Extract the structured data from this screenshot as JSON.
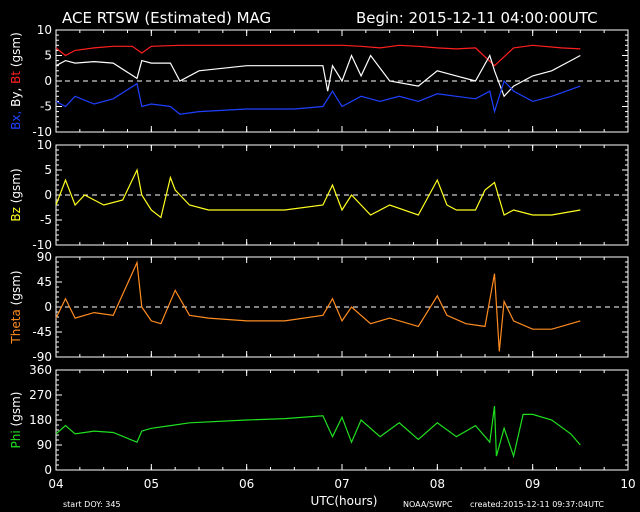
{
  "header": {
    "title": "ACE RTSW (Estimated) MAG",
    "begin": "Begin: 2015-12-11 04:00:00UTC"
  },
  "footer": {
    "start_doy": "start DOY:  345",
    "x_title": "UTC(hours)",
    "source": "NOAA/SWPC",
    "created": "created:2015-12-11 09:37:04UTC"
  },
  "colors": {
    "background": "#000000",
    "axes": "#ffffff",
    "bt": "#ff2020",
    "bx": "#2040ff",
    "by": "#ffffff",
    "bz": "#ffff20",
    "theta": "#ff8c20",
    "phi": "#20e020"
  },
  "chart_data": [
    {
      "type": "line",
      "ylabel_parts": [
        {
          "text": "Bx,",
          "color": "#2040ff"
        },
        {
          "text": " By,",
          "color": "#ffffff"
        },
        {
          "text": " Bt",
          "color": "#ff2020"
        },
        {
          "text": " (gsm)",
          "color": "#ffffff"
        }
      ],
      "ylim": [
        -10,
        10
      ],
      "yticks": [
        -10,
        -5,
        0,
        5,
        10
      ],
      "zero_line": true,
      "series": [
        {
          "key": "bt",
          "color": "#ff2020",
          "x": [
            4.0,
            4.1,
            4.2,
            4.4,
            4.6,
            4.8,
            4.9,
            5.0,
            5.3,
            5.6,
            6.0,
            6.4,
            6.8,
            7.0,
            7.2,
            7.4,
            7.6,
            7.8,
            8.0,
            8.2,
            8.4,
            8.6,
            8.8,
            9.0,
            9.3,
            9.5
          ],
          "values": [
            6.5,
            5.0,
            6.0,
            6.5,
            6.8,
            6.8,
            5.5,
            6.8,
            7.0,
            7.0,
            7.0,
            7.0,
            7.0,
            7.0,
            6.8,
            6.5,
            7.0,
            6.8,
            6.5,
            6.3,
            6.5,
            3.0,
            6.5,
            7.0,
            6.5,
            6.3
          ]
        },
        {
          "key": "by",
          "color": "#ffffff",
          "x": [
            4.0,
            4.1,
            4.2,
            4.4,
            4.6,
            4.85,
            4.9,
            5.0,
            5.2,
            5.3,
            5.5,
            6.0,
            6.5,
            6.8,
            6.85,
            6.9,
            7.0,
            7.1,
            7.2,
            7.3,
            7.5,
            7.8,
            8.0,
            8.2,
            8.4,
            8.55,
            8.6,
            8.7,
            8.8,
            9.0,
            9.2,
            9.4,
            9.5
          ],
          "values": [
            3.0,
            4.0,
            3.5,
            3.8,
            3.5,
            0.5,
            4.0,
            3.5,
            3.5,
            0.0,
            2.0,
            3.0,
            3.0,
            3.0,
            -2.0,
            3.0,
            0.0,
            5.0,
            1.0,
            5.0,
            0.0,
            -1.0,
            2.0,
            1.0,
            0.0,
            5.0,
            2.0,
            -3.0,
            -1.0,
            1.0,
            2.0,
            4.0,
            5.0
          ]
        },
        {
          "key": "bx",
          "color": "#2040ff",
          "x": [
            4.0,
            4.1,
            4.2,
            4.4,
            4.6,
            4.85,
            4.9,
            5.0,
            5.2,
            5.3,
            5.5,
            6.0,
            6.5,
            6.8,
            6.9,
            7.0,
            7.2,
            7.4,
            7.6,
            7.8,
            8.0,
            8.2,
            8.4,
            8.55,
            8.6,
            8.7,
            8.8,
            9.0,
            9.2,
            9.5
          ],
          "values": [
            -4.0,
            -5.0,
            -3.0,
            -4.5,
            -3.5,
            -0.5,
            -5.0,
            -4.5,
            -5.0,
            -6.5,
            -6.0,
            -5.5,
            -5.5,
            -5.0,
            -2.0,
            -5.0,
            -3.0,
            -4.0,
            -3.0,
            -4.0,
            -2.5,
            -3.0,
            -3.5,
            -2.0,
            -6.0,
            0.0,
            -2.0,
            -4.0,
            -3.0,
            -1.0
          ]
        }
      ]
    },
    {
      "type": "line",
      "ylabel_parts": [
        {
          "text": "Bz",
          "color": "#ffff20"
        },
        {
          "text": "  (gsm)",
          "color": "#ffffff"
        }
      ],
      "ylim": [
        -10,
        10
      ],
      "yticks": [
        -10,
        -5,
        0,
        5,
        10
      ],
      "zero_line": true,
      "series": [
        {
          "key": "bz",
          "color": "#ffff20",
          "x": [
            4.0,
            4.1,
            4.2,
            4.3,
            4.5,
            4.7,
            4.85,
            4.9,
            5.0,
            5.1,
            5.2,
            5.25,
            5.4,
            5.6,
            6.0,
            6.4,
            6.8,
            6.9,
            7.0,
            7.1,
            7.3,
            7.5,
            7.8,
            8.0,
            8.1,
            8.2,
            8.4,
            8.5,
            8.6,
            8.7,
            8.8,
            9.0,
            9.2,
            9.5
          ],
          "values": [
            -2.0,
            3.0,
            -2.0,
            0.0,
            -2.0,
            -1.0,
            5.0,
            0.0,
            -3.0,
            -4.5,
            3.5,
            1.0,
            -2.0,
            -3.0,
            -3.0,
            -3.0,
            -2.0,
            2.0,
            -3.0,
            0.0,
            -4.0,
            -2.0,
            -4.0,
            3.0,
            -2.0,
            -3.0,
            -3.0,
            1.0,
            2.5,
            -4.0,
            -3.0,
            -4.0,
            -4.0,
            -3.0
          ]
        }
      ]
    },
    {
      "type": "line",
      "ylabel_parts": [
        {
          "text": "Theta",
          "color": "#ff8c20"
        },
        {
          "text": "  (gsm)",
          "color": "#ffffff"
        }
      ],
      "ylim": [
        -90,
        90
      ],
      "yticks": [
        -90,
        -45,
        0,
        45,
        90
      ],
      "zero_line": true,
      "series": [
        {
          "key": "theta",
          "color": "#ff8c20",
          "x": [
            4.0,
            4.1,
            4.2,
            4.4,
            4.6,
            4.85,
            4.9,
            5.0,
            5.1,
            5.25,
            5.4,
            5.6,
            6.0,
            6.4,
            6.8,
            6.9,
            7.0,
            7.1,
            7.3,
            7.5,
            7.8,
            8.0,
            8.1,
            8.3,
            8.5,
            8.6,
            8.65,
            8.7,
            8.8,
            9.0,
            9.2,
            9.5
          ],
          "values": [
            -20.0,
            15.0,
            -20.0,
            -10.0,
            -15.0,
            80.0,
            0.0,
            -25.0,
            -30.0,
            30.0,
            -15.0,
            -20.0,
            -25.0,
            -25.0,
            -15.0,
            15.0,
            -25.0,
            0.0,
            -30.0,
            -20.0,
            -35.0,
            20.0,
            -15.0,
            -30.0,
            -35.0,
            60.0,
            -80.0,
            10.0,
            -25.0,
            -40.0,
            -40.0,
            -25.0
          ]
        }
      ]
    },
    {
      "type": "line",
      "ylabel_parts": [
        {
          "text": "Phi",
          "color": "#20e020"
        },
        {
          "text": "  (gsm)",
          "color": "#ffffff"
        }
      ],
      "ylim": [
        0,
        360
      ],
      "yticks": [
        0,
        90,
        180,
        270,
        360
      ],
      "zero_line": false,
      "series": [
        {
          "key": "phi",
          "color": "#20e020",
          "x": [
            4.0,
            4.1,
            4.2,
            4.4,
            4.6,
            4.85,
            4.9,
            5.0,
            5.2,
            5.4,
            6.0,
            6.4,
            6.8,
            6.9,
            7.0,
            7.1,
            7.2,
            7.4,
            7.6,
            7.8,
            8.0,
            8.2,
            8.4,
            8.55,
            8.6,
            8.62,
            8.7,
            8.8,
            8.9,
            9.0,
            9.2,
            9.4,
            9.5
          ],
          "values": [
            130.0,
            160.0,
            130.0,
            140.0,
            135.0,
            100.0,
            140.0,
            150.0,
            160.0,
            170.0,
            180.0,
            185.0,
            195.0,
            120.0,
            190.0,
            100.0,
            180.0,
            120.0,
            170.0,
            110.0,
            170.0,
            120.0,
            160.0,
            100.0,
            230.0,
            50.0,
            150.0,
            50.0,
            200.0,
            200.0,
            180.0,
            130.0,
            90.0
          ]
        }
      ]
    }
  ],
  "x_axis": {
    "xlim": [
      4,
      10
    ],
    "ticks": [
      "04",
      "05",
      "06",
      "07",
      "08",
      "09",
      "10"
    ],
    "tick_values": [
      4,
      5,
      6,
      7,
      8,
      9,
      10
    ]
  }
}
